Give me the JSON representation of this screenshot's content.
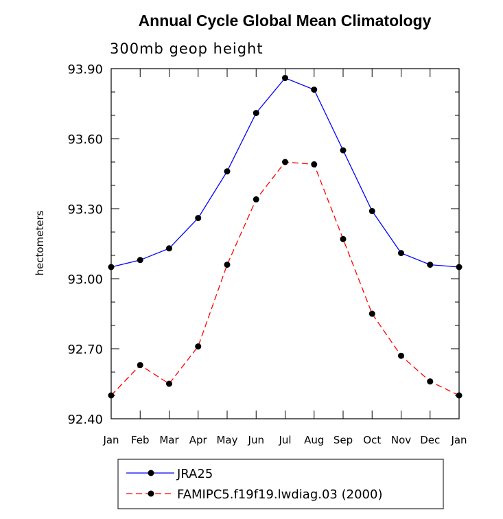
{
  "chart_data": {
    "type": "line",
    "title": "Annual Cycle Global Mean Climatology",
    "subtitle": "300mb geop height",
    "ylabel": "hectometers",
    "xlabel": "",
    "categories": [
      "Jan",
      "Feb",
      "Mar",
      "Apr",
      "May",
      "Jun",
      "Jul",
      "Aug",
      "Sep",
      "Oct",
      "Nov",
      "Dec",
      "Jan"
    ],
    "ylim": [
      92.4,
      93.9
    ],
    "yticks": [
      "92.40",
      "92.70",
      "93.00",
      "93.30",
      "93.60",
      "93.90"
    ],
    "series": [
      {
        "name": "JRA25",
        "color": "#0000ff",
        "style": "solid",
        "marker": "filled-circle",
        "values": [
          93.05,
          93.08,
          93.13,
          93.26,
          93.46,
          93.71,
          93.86,
          93.81,
          93.55,
          93.29,
          93.11,
          93.06,
          93.05
        ]
      },
      {
        "name": "FAMIPC5.f19f19.lwdiag.03 (2000)",
        "color": "#ff0000",
        "style": "dashed",
        "marker": "filled-circle",
        "values": [
          92.5,
          92.63,
          92.55,
          92.71,
          93.06,
          93.34,
          93.5,
          93.49,
          93.17,
          92.85,
          92.67,
          92.56,
          92.5
        ]
      }
    ],
    "grid": false,
    "legend_position": "bottom"
  }
}
